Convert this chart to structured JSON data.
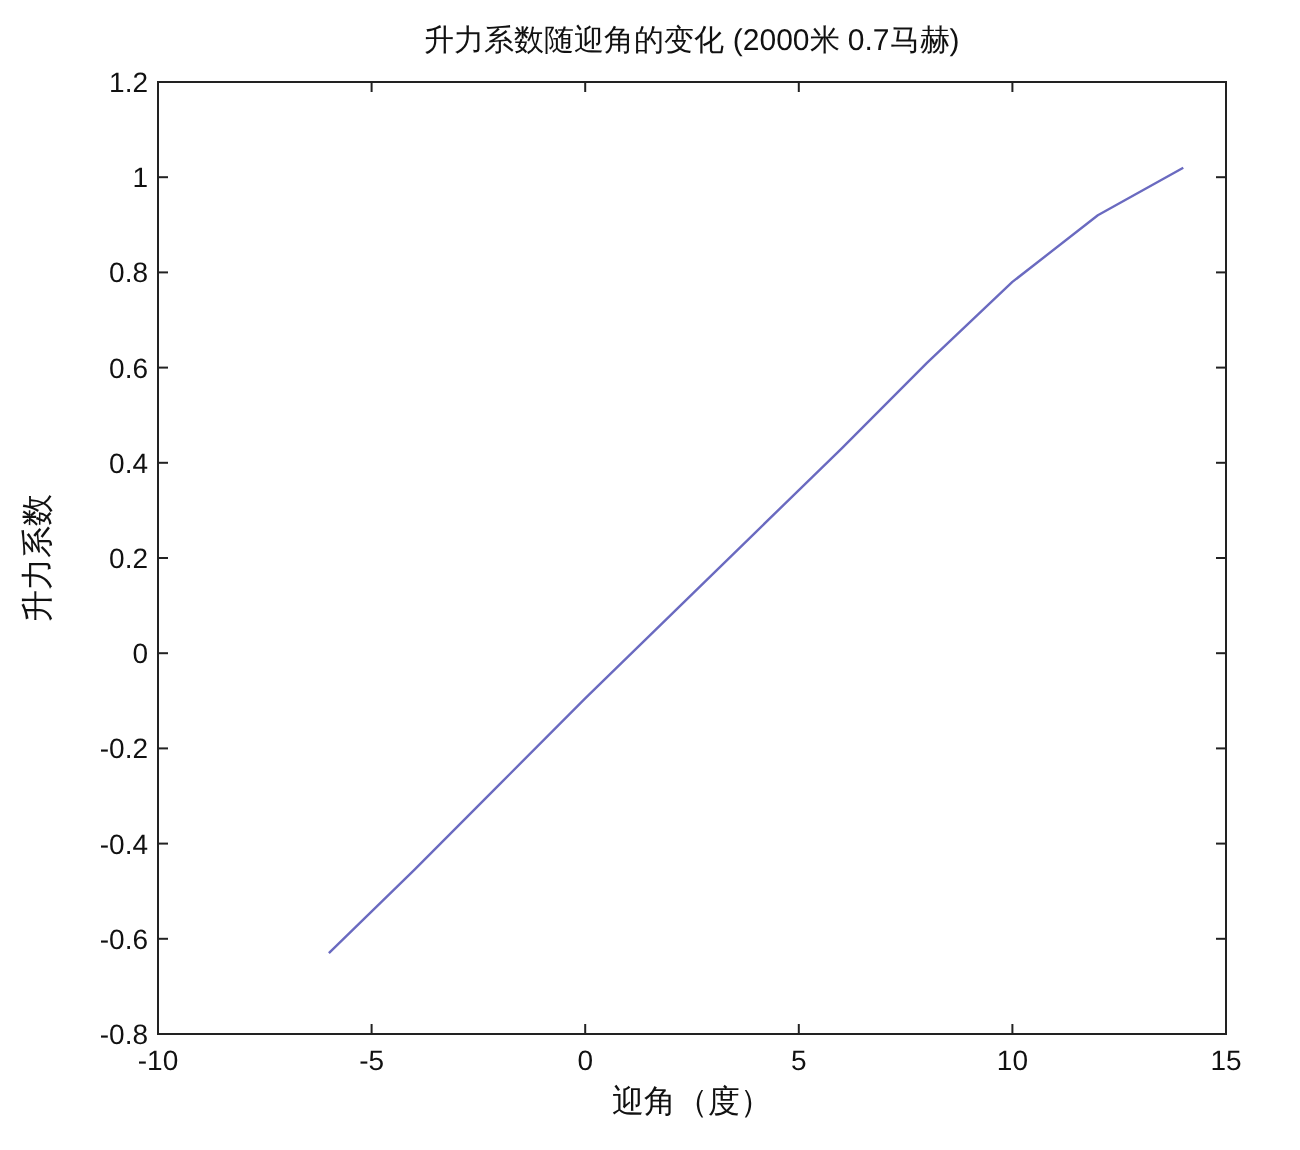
{
  "chart_data": {
    "type": "line",
    "title": "升力系数随迎角的变化 (2000米 0.7马赫)",
    "xlabel": "迎角（度）",
    "ylabel": "升力系数",
    "x": [
      -6,
      -4,
      -2,
      0,
      2,
      4,
      6,
      8,
      10,
      12,
      14
    ],
    "series": [
      {
        "color": "#6a6ac0",
        "values": [
          -0.63,
          -0.455,
          -0.275,
          -0.095,
          0.08,
          0.255,
          0.43,
          0.61,
          0.78,
          0.92,
          1.02
        ]
      }
    ],
    "xlim": [
      -10,
      15
    ],
    "ylim": [
      -0.8,
      1.2
    ],
    "xticks": [
      -10,
      -5,
      0,
      5,
      10,
      15
    ],
    "yticks": [
      -0.8,
      -0.6,
      -0.4,
      -0.2,
      0,
      0.2,
      0.4,
      0.6,
      0.8,
      1,
      1.2
    ]
  }
}
